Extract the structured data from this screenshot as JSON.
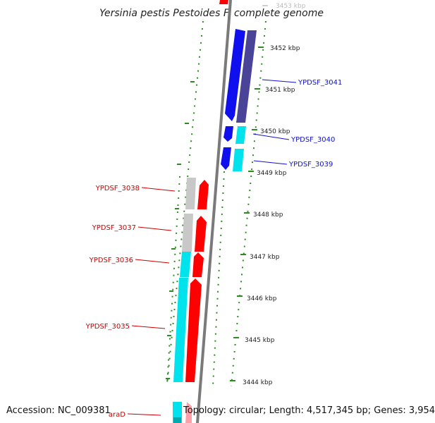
{
  "title": "Yersinia pestis Pestoides F, complete genome",
  "footer": {
    "accession": "Accession: NC_009381",
    "summary": "Topology: circular; Length: 4,517,345 bp; Genes: 3,954"
  },
  "colors": {
    "axis": "#7a7a7a",
    "tick": "#2e8b22",
    "forward_gene": "#ff0000",
    "reverse_gene": "#1010ee",
    "dark_reverse_gene": "#4a4498",
    "cds_cyan": "#00e2ec",
    "cds_gray": "#c8c8c8",
    "forward_label": "#cc0000",
    "reverse_label": "#1010cc"
  },
  "ruler": {
    "unit": "kbp",
    "ticks": [
      "3453 kbp",
      "3452 kbp",
      "3451 kbp",
      "3450 kbp",
      "3449 kbp",
      "3448 kbp",
      "3447 kbp",
      "3446 kbp",
      "3445 kbp",
      "3444 kbp"
    ]
  },
  "genes": [
    {
      "name": "YPDSF_3041",
      "strand": "reverse",
      "feature": "CDS",
      "cds_color": "dark_reverse_gene"
    },
    {
      "name": "YPDSF_3040",
      "strand": "reverse",
      "feature": "CDS",
      "cds_color": "cds_cyan"
    },
    {
      "name": "YPDSF_3039",
      "strand": "reverse",
      "feature": "CDS",
      "cds_color": "cds_cyan"
    },
    {
      "name": "YPDSF_3038",
      "strand": "forward",
      "feature": "CDS",
      "cds_color": "cds_gray"
    },
    {
      "name": "YPDSF_3037",
      "strand": "forward",
      "feature": "CDS",
      "cds_color": "cds_gray"
    },
    {
      "name": "YPDSF_3036",
      "strand": "forward",
      "feature": "CDS",
      "cds_color": "cds_cyan"
    },
    {
      "name": "YPDSF_3035",
      "strand": "forward",
      "feature": "CDS",
      "cds_color": "cds_cyan"
    },
    {
      "name": "araD",
      "strand": "forward",
      "feature": "CDS",
      "cds_color": "cds_cyan"
    }
  ]
}
